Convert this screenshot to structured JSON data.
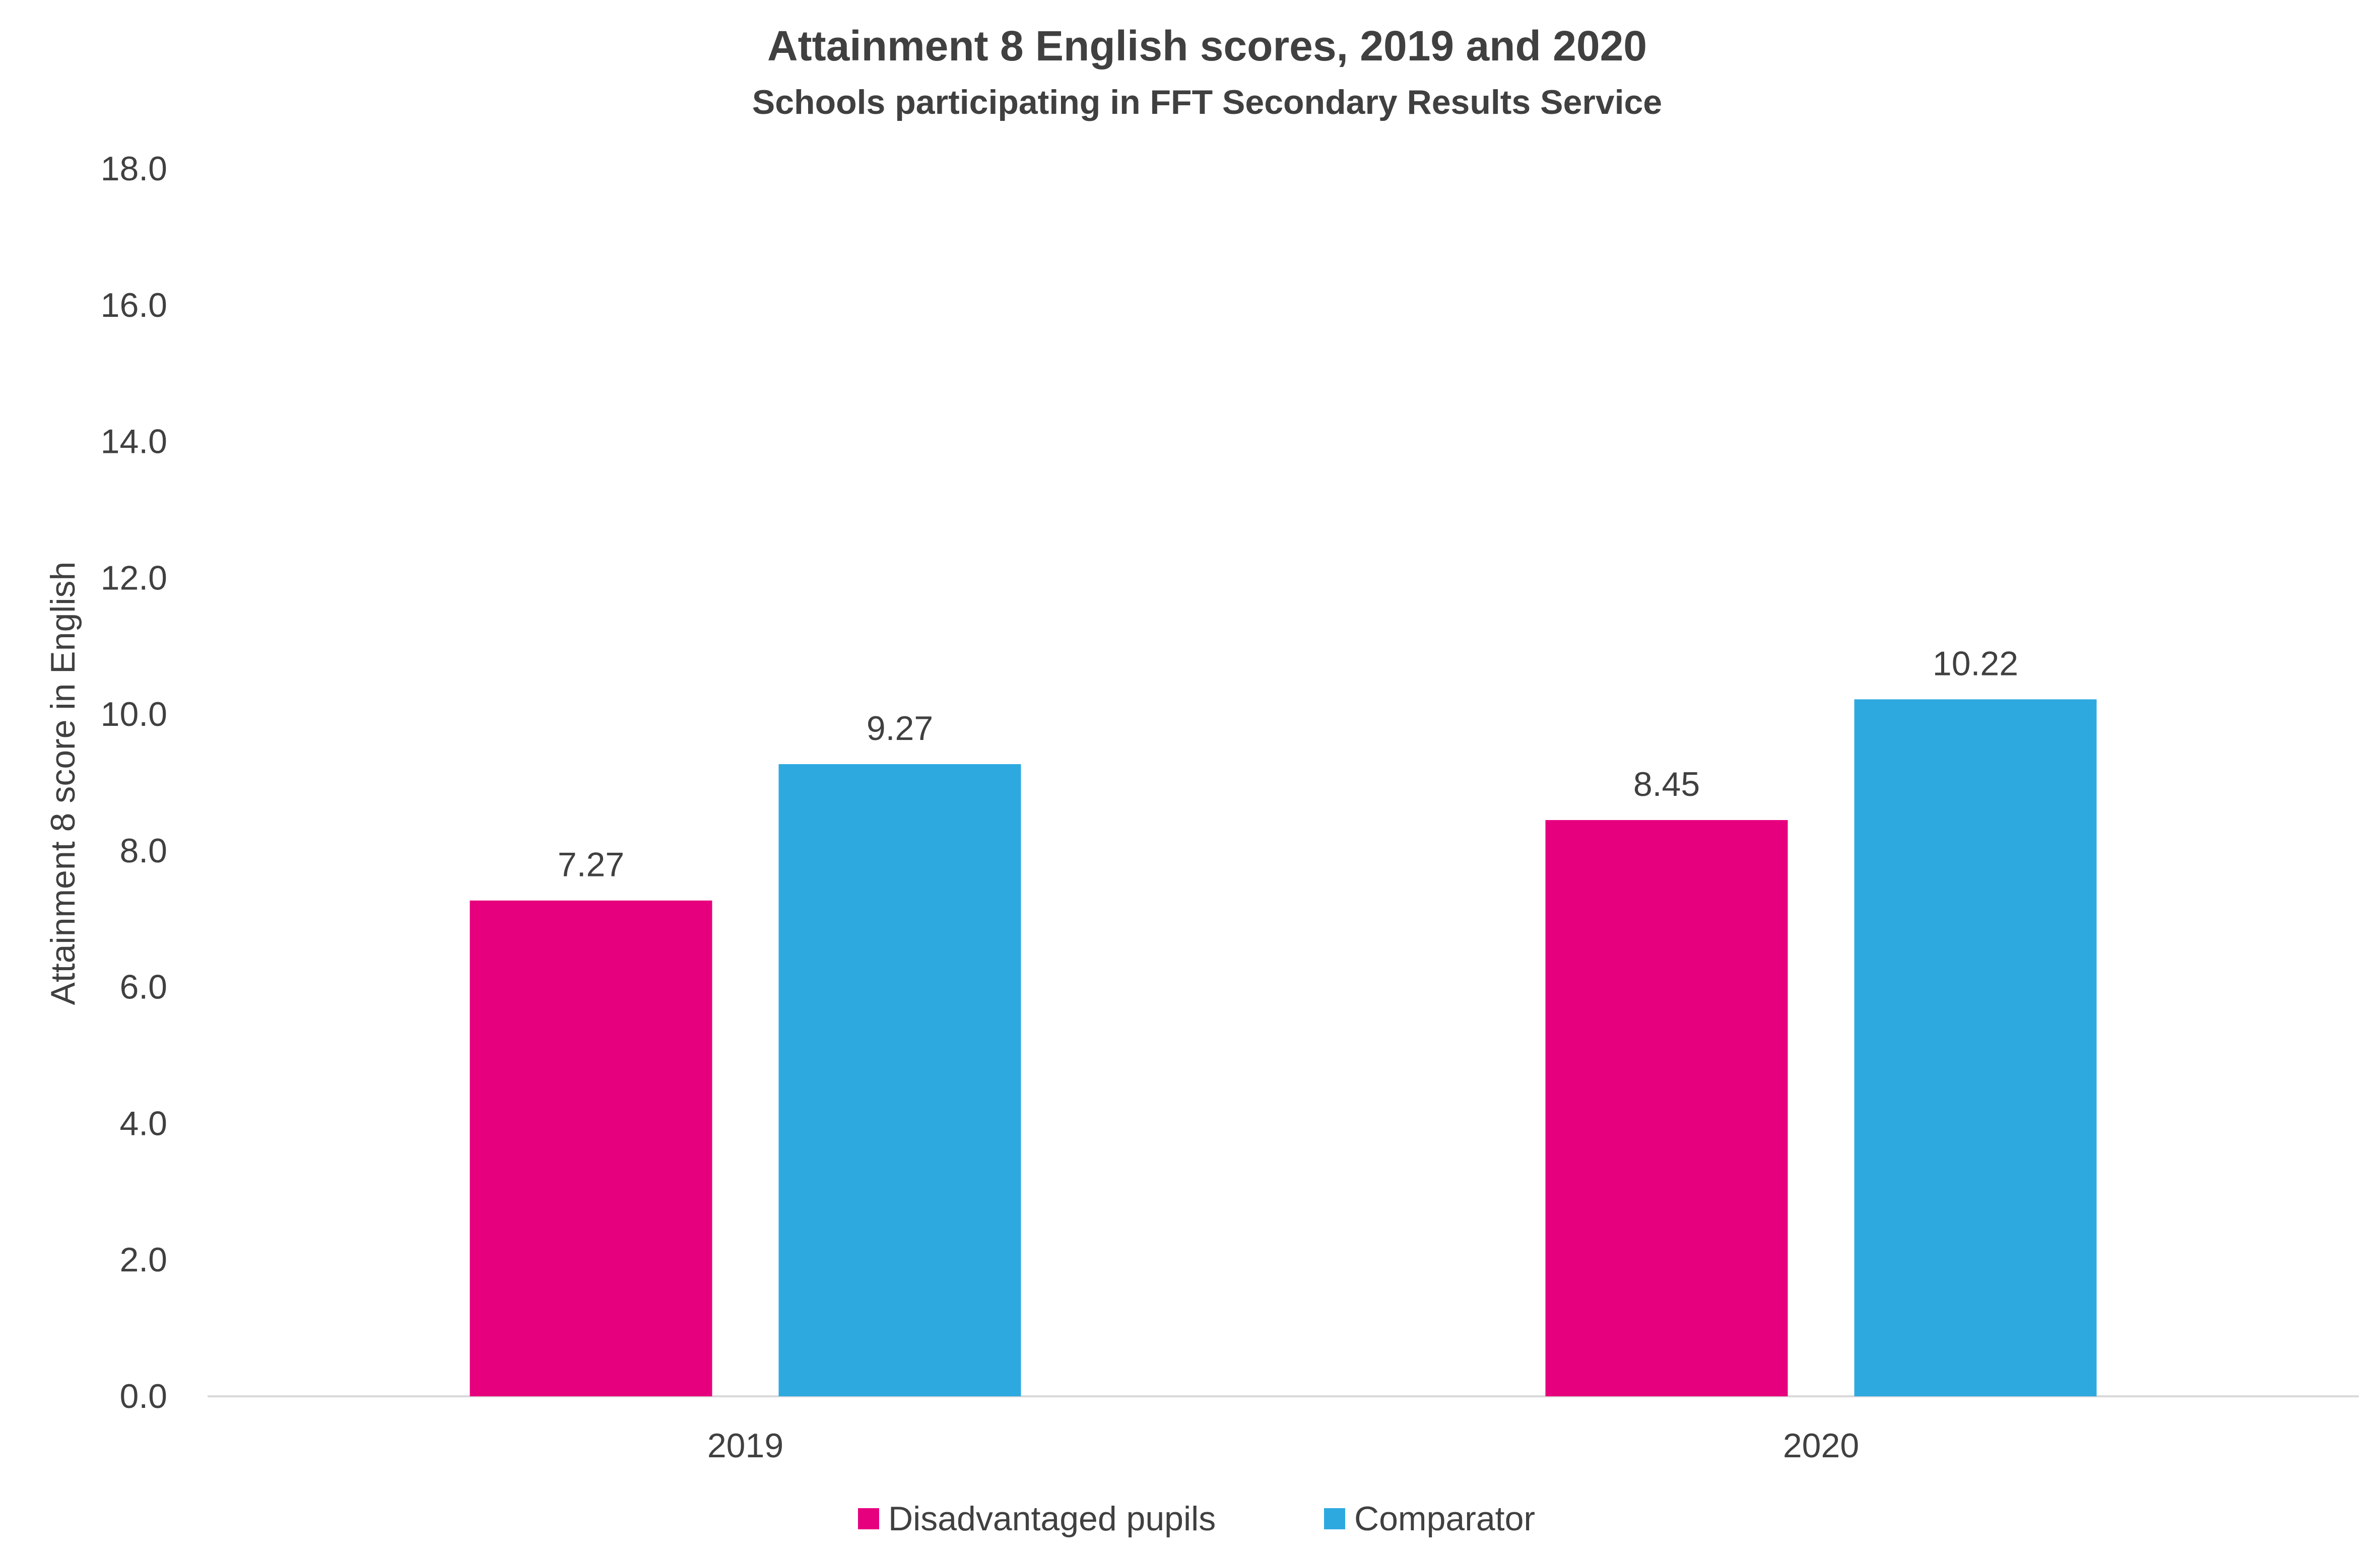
{
  "chart_data": {
    "type": "bar",
    "title": "Attainment 8 English scores, 2019 and 2020",
    "subtitle": "Schools participating in FFT Secondary Results Service",
    "xlabel": "",
    "ylabel": "Attainment 8 score in English",
    "categories": [
      "2019",
      "2020"
    ],
    "series": [
      {
        "name": "Disadvantaged pupils",
        "values": [
          7.27,
          8.45
        ],
        "color": "#E6007E"
      },
      {
        "name": "Comparator",
        "values": [
          9.27,
          10.22
        ],
        "color": "#2EA9E0"
      }
    ],
    "data_labels": [
      [
        "7.27",
        "8.45"
      ],
      [
        "9.27",
        "10.22"
      ]
    ],
    "ylim": [
      0,
      18
    ],
    "yticks": [
      0,
      2,
      4,
      6,
      8,
      10,
      12,
      14,
      16,
      18
    ],
    "ytick_labels": [
      "0.0",
      "2.0",
      "4.0",
      "6.0",
      "8.0",
      "10.0",
      "12.0",
      "14.0",
      "16.0",
      "18.0"
    ],
    "grid": false,
    "legend_position": "bottom"
  }
}
